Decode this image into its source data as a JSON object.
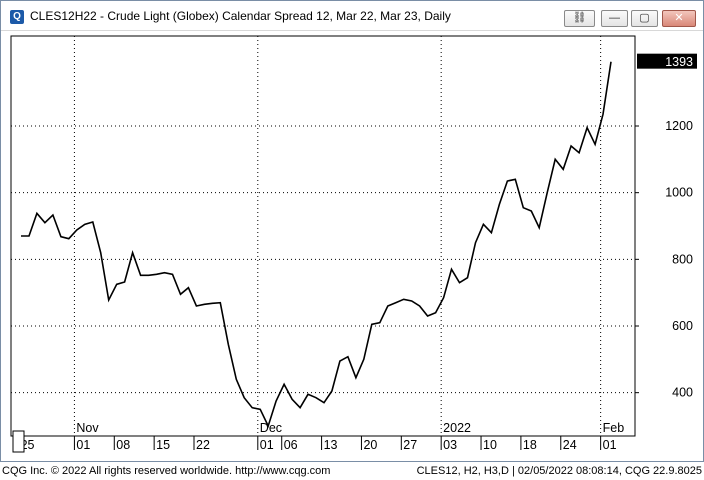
{
  "window": {
    "title": "CLES12H22 - Crude Light (Globex) Calendar Spread 12, Mar 22, Mar 23, Daily",
    "app_icon_glyph": "Q",
    "buttons": {
      "link": "⛓",
      "minimize": "—",
      "maximize": "▢",
      "close": "✕"
    }
  },
  "footer": {
    "left": "CQG Inc. © 2022 All rights reserved worldwide. http://www.cqg.com",
    "right": "CLES12, H2, H3,D | 02/05/2022 08:08:14, CQG 22.9.8025"
  },
  "colors": {
    "line": "#000000",
    "grid": "#000000",
    "last_box": "#000000"
  },
  "chart_data": {
    "type": "line",
    "title": "CLES12H22 - Crude Light (Globex) Calendar Spread 12, Mar 22, Mar 23, Daily",
    "xlabel": "",
    "ylabel": "",
    "ylim": [
      270,
      1470
    ],
    "y_ticks": [
      400,
      600,
      800,
      1000,
      1200
    ],
    "y_tick_labels": [
      "400",
      "600",
      "800",
      "1000",
      "1200"
    ],
    "last_value": 1393,
    "last_value_label": "1393",
    "grid": true,
    "month_labels": [
      "Nov",
      "Dec",
      "2022",
      "Feb"
    ],
    "day_labels": [
      "25",
      "01",
      "08",
      "15",
      "22",
      "01",
      "06",
      "13",
      "20",
      "27",
      "03",
      "10",
      "18",
      "24",
      "01"
    ],
    "series": [
      {
        "values": [
          870,
          870,
          938,
          910,
          933,
          868,
          862,
          888,
          905,
          912,
          820,
          678,
          725,
          732,
          820,
          752,
          752,
          755,
          760,
          755,
          695,
          715,
          660,
          665,
          668,
          670,
          545,
          440,
          385,
          355,
          350,
          300,
          375,
          425,
          380,
          355,
          395,
          385,
          370,
          405,
          495,
          508,
          445,
          500,
          605,
          610,
          660,
          670,
          680,
          675,
          660,
          630,
          640,
          685,
          770,
          730,
          745,
          850,
          905,
          880,
          965,
          1035,
          1040,
          955,
          945,
          895,
          1000,
          1100,
          1070,
          1140,
          1120,
          1195,
          1145,
          1235,
          1393
        ]
      }
    ]
  }
}
